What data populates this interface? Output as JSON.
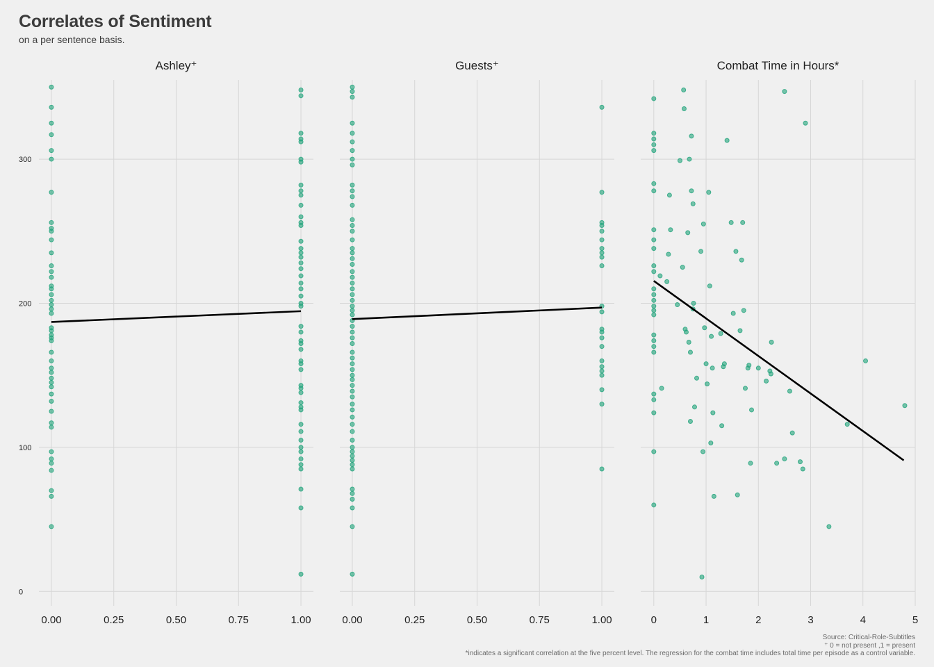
{
  "title": "Correlates of Sentiment",
  "subtitle": "on a per sentence basis.",
  "captions": {
    "source": "Source: Critical-Role-Subtitles",
    "note_binary": "⁺ 0 = not present ,1 = present",
    "note_significance": "*indicates a significant correlation at the five percent level. The regression for the combat time includes total time per episode as a control variable."
  },
  "colors": {
    "point": "#1fa37a",
    "line": "#000000",
    "grid": "#d6d6d6",
    "background": "#f0f0f0"
  },
  "chart_data": [
    {
      "type": "scatter",
      "title": "Ashley⁺",
      "xlim": [
        -0.05,
        1.05
      ],
      "x_ticks": [
        "0.00",
        "0.25",
        "0.50",
        "0.75",
        "1.00"
      ],
      "ylim": [
        -10,
        355
      ],
      "y_ticks": [
        "0",
        "100",
        "200",
        "300"
      ],
      "points": [
        [
          0,
          350
        ],
        [
          0,
          336
        ],
        [
          0,
          325
        ],
        [
          0,
          317
        ],
        [
          0,
          306
        ],
        [
          0,
          300
        ],
        [
          0,
          277
        ],
        [
          0,
          256
        ],
        [
          0,
          252
        ],
        [
          0,
          250
        ],
        [
          0,
          244
        ],
        [
          0,
          235
        ],
        [
          0,
          226
        ],
        [
          0,
          222
        ],
        [
          0,
          218
        ],
        [
          0,
          212
        ],
        [
          0,
          210
        ],
        [
          0,
          206
        ],
        [
          0,
          202
        ],
        [
          0,
          199
        ],
        [
          0,
          196
        ],
        [
          0,
          193
        ],
        [
          0,
          183
        ],
        [
          0,
          181
        ],
        [
          0,
          178
        ],
        [
          0,
          176
        ],
        [
          0,
          174
        ],
        [
          0,
          166
        ],
        [
          0,
          160
        ],
        [
          0,
          155
        ],
        [
          0,
          152
        ],
        [
          0,
          148
        ],
        [
          0,
          145
        ],
        [
          0,
          142
        ],
        [
          0,
          137
        ],
        [
          0,
          132
        ],
        [
          0,
          125
        ],
        [
          0,
          117
        ],
        [
          0,
          114
        ],
        [
          0,
          97
        ],
        [
          0,
          92
        ],
        [
          0,
          89
        ],
        [
          0,
          84
        ],
        [
          0,
          70
        ],
        [
          0,
          66
        ],
        [
          0,
          45
        ],
        [
          1,
          348
        ],
        [
          1,
          344
        ],
        [
          1,
          318
        ],
        [
          1,
          314
        ],
        [
          1,
          312
        ],
        [
          1,
          300
        ],
        [
          1,
          298
        ],
        [
          1,
          282
        ],
        [
          1,
          278
        ],
        [
          1,
          275
        ],
        [
          1,
          268
        ],
        [
          1,
          260
        ],
        [
          1,
          256
        ],
        [
          1,
          254
        ],
        [
          1,
          243
        ],
        [
          1,
          238
        ],
        [
          1,
          235
        ],
        [
          1,
          232
        ],
        [
          1,
          228
        ],
        [
          1,
          224
        ],
        [
          1,
          219
        ],
        [
          1,
          214
        ],
        [
          1,
          210
        ],
        [
          1,
          205
        ],
        [
          1,
          200
        ],
        [
          1,
          198
        ],
        [
          1,
          184
        ],
        [
          1,
          180
        ],
        [
          1,
          174
        ],
        [
          1,
          172
        ],
        [
          1,
          168
        ],
        [
          1,
          160
        ],
        [
          1,
          158
        ],
        [
          1,
          154
        ],
        [
          1,
          143
        ],
        [
          1,
          141
        ],
        [
          1,
          138
        ],
        [
          1,
          131
        ],
        [
          1,
          128
        ],
        [
          1,
          126
        ],
        [
          1,
          116
        ],
        [
          1,
          111
        ],
        [
          1,
          105
        ],
        [
          1,
          100
        ],
        [
          1,
          97
        ],
        [
          1,
          92
        ],
        [
          1,
          88
        ],
        [
          1,
          85
        ],
        [
          1,
          71
        ],
        [
          1,
          58
        ],
        [
          1,
          12
        ]
      ],
      "regression": [
        [
          0,
          187
        ],
        [
          1,
          194.5
        ]
      ]
    },
    {
      "type": "scatter",
      "title": "Guests⁺",
      "xlim": [
        -0.05,
        1.05
      ],
      "x_ticks": [
        "0.00",
        "0.25",
        "0.50",
        "0.75",
        "1.00"
      ],
      "ylim": [
        -10,
        355
      ],
      "y_ticks": [
        "0",
        "100",
        "200",
        "300"
      ],
      "points": [
        [
          0,
          350
        ],
        [
          0,
          347
        ],
        [
          0,
          343
        ],
        [
          0,
          325
        ],
        [
          0,
          318
        ],
        [
          0,
          312
        ],
        [
          0,
          306
        ],
        [
          0,
          300
        ],
        [
          0,
          296
        ],
        [
          0,
          282
        ],
        [
          0,
          278
        ],
        [
          0,
          274
        ],
        [
          0,
          268
        ],
        [
          0,
          258
        ],
        [
          0,
          254
        ],
        [
          0,
          250
        ],
        [
          0,
          244
        ],
        [
          0,
          238
        ],
        [
          0,
          235
        ],
        [
          0,
          231
        ],
        [
          0,
          227
        ],
        [
          0,
          222
        ],
        [
          0,
          218
        ],
        [
          0,
          214
        ],
        [
          0,
          210
        ],
        [
          0,
          206
        ],
        [
          0,
          202
        ],
        [
          0,
          198
        ],
        [
          0,
          195
        ],
        [
          0,
          192
        ],
        [
          0,
          188
        ],
        [
          0,
          184
        ],
        [
          0,
          180
        ],
        [
          0,
          176
        ],
        [
          0,
          172
        ],
        [
          0,
          166
        ],
        [
          0,
          162
        ],
        [
          0,
          158
        ],
        [
          0,
          154
        ],
        [
          0,
          150
        ],
        [
          0,
          147
        ],
        [
          0,
          143
        ],
        [
          0,
          139
        ],
        [
          0,
          135
        ],
        [
          0,
          130
        ],
        [
          0,
          126
        ],
        [
          0,
          121
        ],
        [
          0,
          116
        ],
        [
          0,
          111
        ],
        [
          0,
          105
        ],
        [
          0,
          100
        ],
        [
          0,
          97
        ],
        [
          0,
          94
        ],
        [
          0,
          91
        ],
        [
          0,
          88
        ],
        [
          0,
          85
        ],
        [
          0,
          71
        ],
        [
          0,
          68
        ],
        [
          0,
          64
        ],
        [
          0,
          58
        ],
        [
          0,
          45
        ],
        [
          0,
          12
        ],
        [
          1,
          336
        ],
        [
          1,
          277
        ],
        [
          1,
          256
        ],
        [
          1,
          254
        ],
        [
          1,
          250
        ],
        [
          1,
          244
        ],
        [
          1,
          238
        ],
        [
          1,
          235
        ],
        [
          1,
          232
        ],
        [
          1,
          226
        ],
        [
          1,
          198
        ],
        [
          1,
          194
        ],
        [
          1,
          182
        ],
        [
          1,
          180
        ],
        [
          1,
          176
        ],
        [
          1,
          170
        ],
        [
          1,
          160
        ],
        [
          1,
          156
        ],
        [
          1,
          153
        ],
        [
          1,
          150
        ],
        [
          1,
          140
        ],
        [
          1,
          130
        ],
        [
          1,
          85
        ]
      ],
      "regression": [
        [
          0,
          189
        ],
        [
          1,
          197
        ]
      ]
    },
    {
      "type": "scatter",
      "title": "Combat Time in Hours*",
      "xlim": [
        -0.25,
        5.0
      ],
      "x_ticks": [
        "0",
        "1",
        "2",
        "3",
        "4",
        "5"
      ],
      "ylim": [
        -10,
        355
      ],
      "y_ticks": [
        "0",
        "100",
        "200",
        "300"
      ],
      "points": [
        [
          0,
          342
        ],
        [
          0,
          318
        ],
        [
          0,
          314
        ],
        [
          0,
          310
        ],
        [
          0,
          306
        ],
        [
          0,
          283
        ],
        [
          0,
          278
        ],
        [
          0,
          251
        ],
        [
          0,
          244
        ],
        [
          0,
          238
        ],
        [
          0,
          226
        ],
        [
          0,
          222
        ],
        [
          0,
          210
        ],
        [
          0,
          206
        ],
        [
          0,
          202
        ],
        [
          0,
          198
        ],
        [
          0,
          195
        ],
        [
          0,
          192
        ],
        [
          0,
          178
        ],
        [
          0,
          174
        ],
        [
          0,
          170
        ],
        [
          0,
          166
        ],
        [
          0,
          137
        ],
        [
          0,
          133
        ],
        [
          0,
          124
        ],
        [
          0,
          97
        ],
        [
          0,
          60
        ],
        [
          0.12,
          219
        ],
        [
          0.15,
          141
        ],
        [
          0.25,
          215
        ],
        [
          0.28,
          234
        ],
        [
          0.3,
          275
        ],
        [
          0.32,
          251
        ],
        [
          0.45,
          199
        ],
        [
          0.5,
          299
        ],
        [
          0.55,
          225
        ],
        [
          0.57,
          348
        ],
        [
          0.58,
          335
        ],
        [
          0.6,
          182
        ],
        [
          0.62,
          180
        ],
        [
          0.65,
          249
        ],
        [
          0.67,
          173
        ],
        [
          0.68,
          300
        ],
        [
          0.7,
          166
        ],
        [
          0.7,
          118
        ],
        [
          0.72,
          316
        ],
        [
          0.72,
          278
        ],
        [
          0.75,
          269
        ],
        [
          0.75,
          196
        ],
        [
          0.76,
          200
        ],
        [
          0.78,
          128
        ],
        [
          0.82,
          148
        ],
        [
          0.9,
          236
        ],
        [
          0.92,
          10
        ],
        [
          0.94,
          97
        ],
        [
          0.95,
          255
        ],
        [
          0.97,
          183
        ],
        [
          1.0,
          158
        ],
        [
          1.02,
          144
        ],
        [
          1.05,
          277
        ],
        [
          1.07,
          212
        ],
        [
          1.09,
          103
        ],
        [
          1.1,
          177
        ],
        [
          1.12,
          155
        ],
        [
          1.13,
          124
        ],
        [
          1.15,
          66
        ],
        [
          1.28,
          179
        ],
        [
          1.3,
          115
        ],
        [
          1.33,
          156
        ],
        [
          1.35,
          158
        ],
        [
          1.4,
          313
        ],
        [
          1.48,
          256
        ],
        [
          1.52,
          193
        ],
        [
          1.57,
          236
        ],
        [
          1.6,
          67
        ],
        [
          1.65,
          181
        ],
        [
          1.68,
          230
        ],
        [
          1.7,
          256
        ],
        [
          1.72,
          195
        ],
        [
          1.75,
          141
        ],
        [
          1.8,
          155
        ],
        [
          1.82,
          157
        ],
        [
          1.85,
          89
        ],
        [
          1.87,
          126
        ],
        [
          2.0,
          155
        ],
        [
          2.15,
          146
        ],
        [
          2.22,
          153
        ],
        [
          2.24,
          151
        ],
        [
          2.25,
          173
        ],
        [
          2.35,
          89
        ],
        [
          2.5,
          92
        ],
        [
          2.5,
          347
        ],
        [
          2.6,
          139
        ],
        [
          2.65,
          110
        ],
        [
          2.8,
          90
        ],
        [
          2.85,
          85
        ],
        [
          2.9,
          325
        ],
        [
          3.35,
          45
        ],
        [
          3.7,
          116
        ],
        [
          4.05,
          160
        ],
        [
          4.8,
          129
        ]
      ],
      "regression": [
        [
          0,
          215.5
        ],
        [
          4.78,
          91
        ]
      ]
    }
  ]
}
